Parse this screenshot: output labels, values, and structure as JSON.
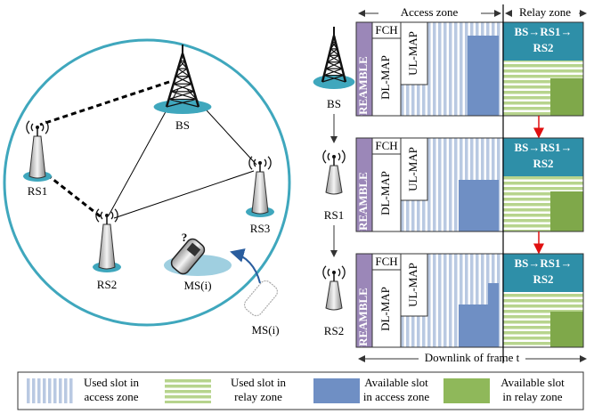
{
  "network": {
    "nodes": [
      {
        "label": "BS"
      },
      {
        "label": "RS1"
      },
      {
        "label": "RS2"
      },
      {
        "label": "RS3"
      },
      {
        "label": "MS(i)"
      },
      {
        "label": "MS(i)"
      }
    ],
    "unknown_mark": "?"
  },
  "frames": {
    "access_zone": "Access zone",
    "relay_zone": "Relay zone",
    "caption": "Downlink of frame t",
    "rows": [
      {
        "station": "BS",
        "preamble": "PREAMBLE",
        "fch": "FCH",
        "dl_map": "DL-MAP",
        "ul_map": "UL-MAP",
        "relay_path": [
          "BS→RS1→",
          "RS2"
        ]
      },
      {
        "station": "RS1",
        "preamble": "PREAMBLE",
        "fch": "FCH",
        "dl_map": "DL-MAP",
        "ul_map": "UL-MAP",
        "relay_path": [
          "BS→RS1→",
          "RS2"
        ]
      },
      {
        "station": "RS2",
        "preamble": "PREAMBLE",
        "fch": "FCH",
        "dl_map": "DL-MAP",
        "ul_map": "UL-MAP",
        "relay_path": [
          "BS→RS1→",
          "RS2"
        ]
      }
    ]
  },
  "legend": [
    {
      "label": [
        "Used slot in",
        "access zone"
      ]
    },
    {
      "label": [
        "Used slot in",
        "relay zone"
      ]
    },
    {
      "label": [
        "Available slot",
        "in access zone"
      ]
    },
    {
      "label": [
        "Available slot",
        "in relay zone"
      ]
    }
  ]
}
